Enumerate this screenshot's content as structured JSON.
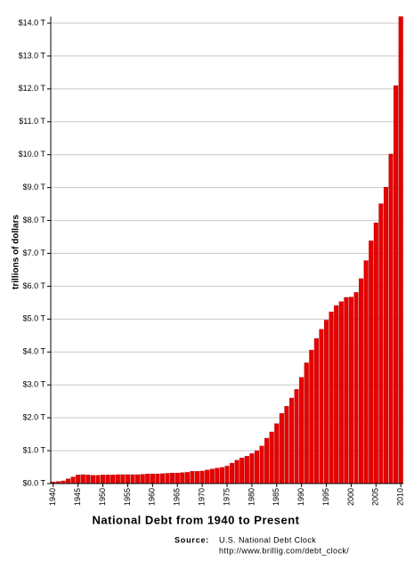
{
  "chart_data": {
    "type": "bar",
    "title": "National Debt from 1940 to Present",
    "y_label": "trillions of dollars",
    "source_label": "Source:",
    "source_text": "U.S. National Debt Clock",
    "source_url": "http://www.brillig.com/debt_clock/",
    "color": "#e80000",
    "grid": true,
    "categories": [
      "1940",
      null,
      null,
      null,
      null,
      "1945",
      null,
      null,
      null,
      null,
      "1950",
      null,
      null,
      null,
      null,
      "1955",
      null,
      null,
      null,
      null,
      "1960",
      null,
      null,
      null,
      null,
      "1965",
      null,
      null,
      null,
      null,
      "1970",
      null,
      null,
      null,
      null,
      "1975",
      null,
      null,
      null,
      null,
      "1980",
      null,
      null,
      null,
      null,
      "1985",
      null,
      null,
      null,
      null,
      "1990",
      null,
      null,
      null,
      null,
      "1995",
      null,
      null,
      null,
      null,
      "2000",
      null,
      null,
      null,
      null,
      "2005",
      null,
      null,
      null,
      null,
      "2010"
    ],
    "values": [
      0.05,
      0.06,
      0.08,
      0.14,
      0.2,
      0.26,
      0.27,
      0.26,
      0.25,
      0.25,
      0.26,
      0.26,
      0.26,
      0.27,
      0.27,
      0.27,
      0.27,
      0.27,
      0.28,
      0.29,
      0.29,
      0.29,
      0.3,
      0.31,
      0.32,
      0.32,
      0.33,
      0.34,
      0.37,
      0.37,
      0.38,
      0.41,
      0.44,
      0.47,
      0.49,
      0.53,
      0.62,
      0.71,
      0.78,
      0.83,
      0.91,
      1.0,
      1.14,
      1.38,
      1.57,
      1.82,
      2.13,
      2.35,
      2.6,
      2.86,
      3.23,
      3.67,
      4.06,
      4.41,
      4.69,
      4.97,
      5.22,
      5.41,
      5.53,
      5.66,
      5.67,
      5.81,
      6.23,
      6.78,
      7.38,
      7.93,
      8.51,
      9.01,
      10.02,
      12.1,
      14.2
    ],
    "ylim": [
      0,
      14.2
    ],
    "yticks": [
      {
        "value": 0,
        "label": "$0.0 T"
      },
      {
        "value": 1,
        "label": "$1.0 T"
      },
      {
        "value": 2,
        "label": "$2.0 T"
      },
      {
        "value": 3,
        "label": "$3.0 T"
      },
      {
        "value": 4,
        "label": "$4.0 T"
      },
      {
        "value": 5,
        "label": "$5.0 T"
      },
      {
        "value": 6,
        "label": "$6.0 T"
      },
      {
        "value": 7,
        "label": "$7.0 T"
      },
      {
        "value": 8,
        "label": "$8.0 T"
      },
      {
        "value": 9,
        "label": "$9.0 T"
      },
      {
        "value": 10,
        "label": "$10.0 T"
      },
      {
        "value": 11,
        "label": "$11.0 T"
      },
      {
        "value": 12,
        "label": "$12.0 T"
      },
      {
        "value": 13,
        "label": "$13.0 T"
      },
      {
        "value": 14,
        "label": "$14.0 T"
      }
    ]
  }
}
